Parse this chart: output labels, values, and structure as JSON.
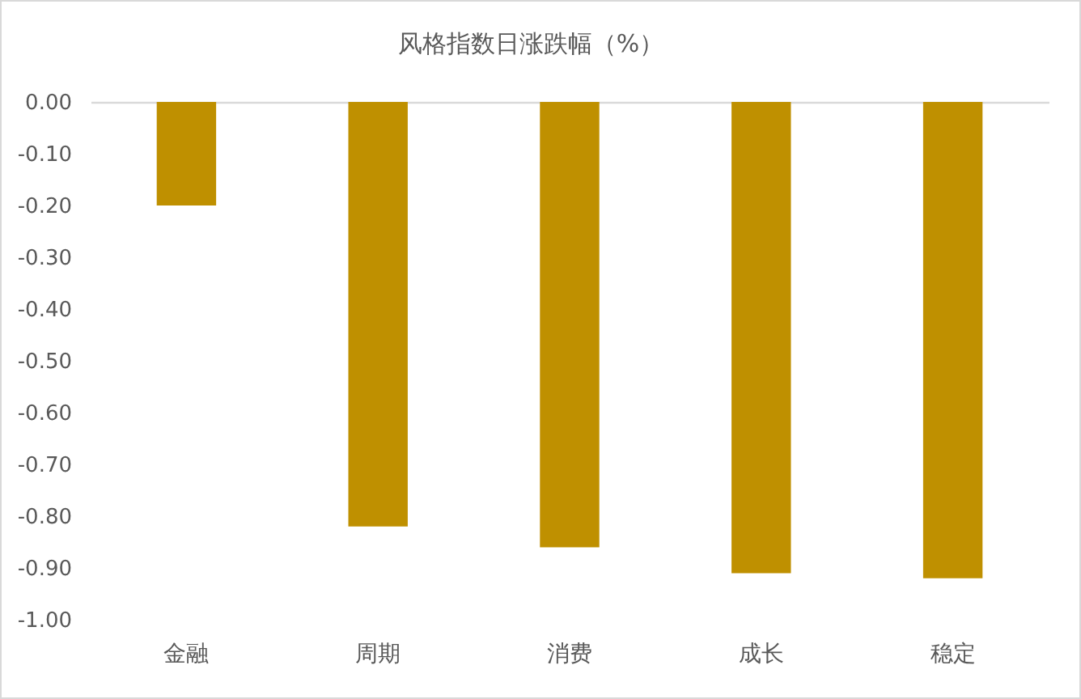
{
  "chart_data": {
    "type": "bar",
    "title": "风格指数日涨跌幅（%）",
    "categories": [
      "金融",
      "周期",
      "消费",
      "成长",
      "稳定"
    ],
    "values": [
      -0.2,
      -0.82,
      -0.86,
      -0.91,
      -0.92
    ],
    "color": "#bf9000",
    "ylim": [
      -1,
      0
    ],
    "yticks": [
      {
        "value": 0,
        "label": "0.00"
      },
      {
        "value": -0.1,
        "label": "-0.10"
      },
      {
        "value": -0.2,
        "label": "-0.20"
      },
      {
        "value": -0.3,
        "label": "-0.30"
      },
      {
        "value": -0.4,
        "label": "-0.40"
      },
      {
        "value": -0.5,
        "label": "-0.50"
      },
      {
        "value": -0.6,
        "label": "-0.60"
      },
      {
        "value": -0.7,
        "label": "-0.70"
      },
      {
        "value": -0.8,
        "label": "-0.80"
      },
      {
        "value": -0.9,
        "label": "-0.90"
      },
      {
        "value": -1,
        "label": "-1.00"
      }
    ]
  }
}
